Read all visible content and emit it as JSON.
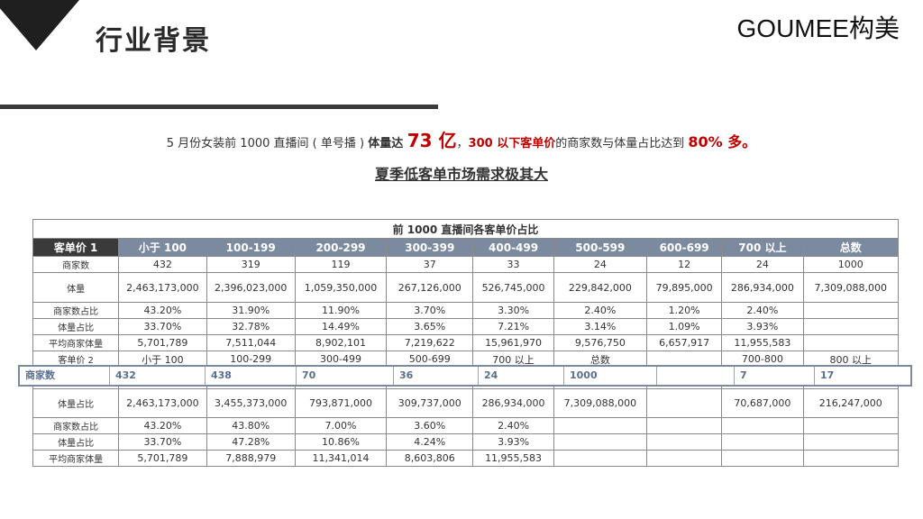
{
  "header": {
    "title": "行业背景",
    "logo": "GOUMEE构美"
  },
  "summary": {
    "part1": "5 月份女装前 1000 直播间 ( 单号播 ) ",
    "part2": "体量达 ",
    "amount": "73 亿",
    "part3": "，",
    "price_tag": "300 以下客单价",
    "part4": "的商家数与体量占比达到 ",
    "percent": "80% 多。"
  },
  "subtitle": "夏季低客单市场需求极其大",
  "table": {
    "caption": "前 1000 直播间各客单价占比",
    "header": [
      "客单价 1",
      "小于 100",
      "100-199",
      "200-299",
      "300-399",
      "400-499",
      "500-599",
      "600-699",
      "700 以上",
      "总数"
    ],
    "rows1": [
      [
        "商家数",
        "432",
        "319",
        "119",
        "37",
        "33",
        "24",
        "12",
        "24",
        "1000"
      ],
      [
        "体量",
        "2,463,173,000",
        "2,396,023,000",
        "1,059,350,000",
        "267,126,000",
        "526,745,000",
        "229,842,000",
        "79,895,000",
        "286,934,000",
        "7,309,088,000"
      ],
      [
        "商家数占比",
        "43.20%",
        "31.90%",
        "11.90%",
        "3.70%",
        "3.30%",
        "2.40%",
        "1.20%",
        "2.40%",
        ""
      ],
      [
        "体量占比",
        "33.70%",
        "32.78%",
        "14.49%",
        "3.65%",
        "7.21%",
        "3.14%",
        "1.09%",
        "3.93%",
        ""
      ],
      [
        "平均商家体量",
        "5,701,789",
        "7,511,044",
        "8,902,101",
        "7,219,622",
        "15,961,970",
        "9,576,750",
        "6,657,917",
        "11,955,583",
        ""
      ]
    ],
    "header2": [
      "客单价 2",
      "小于 100",
      "100-299",
      "300-499",
      "500-699",
      "700 以上",
      "总数",
      "",
      "700-800",
      "800 以上"
    ],
    "rows2": [
      [
        "体量占比",
        "2,463,173,000",
        "3,455,373,000",
        "793,871,000",
        "309,737,000",
        "286,934,000",
        "7,309,088,000",
        "",
        "70,687,000",
        "216,247,000"
      ],
      [
        "商家数占比",
        "43.20%",
        "43.80%",
        "7.00%",
        "3.60%",
        "2.40%",
        "",
        "",
        "",
        ""
      ],
      [
        "体量占比",
        "33.70%",
        "47.28%",
        "10.86%",
        "4.24%",
        "3.93%",
        "",
        "",
        "",
        ""
      ],
      [
        "平均商家体量",
        "5,701,789",
        "7,888,979",
        "11,341,014",
        "8,603,806",
        "11,955,583",
        "",
        "",
        "",
        ""
      ]
    ]
  },
  "overlay_row": [
    "商家数",
    "432",
    "438",
    "70",
    "36",
    "24",
    "1000",
    "",
    "7",
    "17"
  ],
  "colors": {
    "header_bg": "#7b8a9e",
    "accent_red": "#c00000",
    "dark": "#3a3a3a"
  }
}
